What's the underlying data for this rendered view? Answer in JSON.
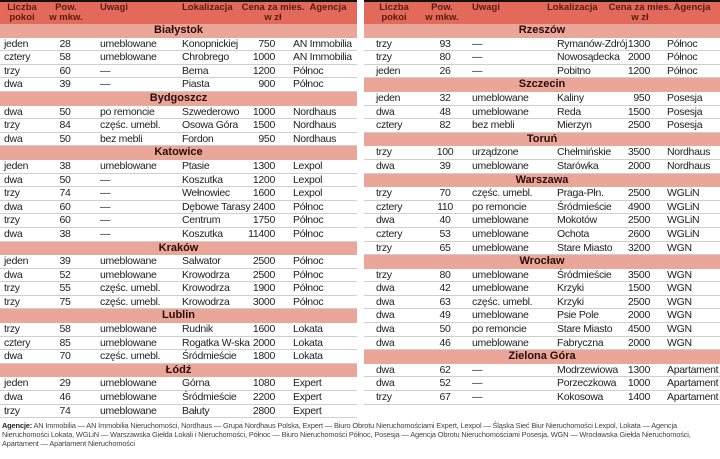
{
  "headers": [
    "Liczba\npokoi",
    "Pow.\nw mkw.",
    "Uwagi",
    "Lokalizacja",
    "Cena za mies.\nw zł",
    "Agencja"
  ],
  "colors": {
    "header_bg": "#e3695b",
    "city_bg": "#eba69a",
    "header_text": "#5a1a12"
  },
  "left_table": [
    {
      "city": "Białystok",
      "rows": [
        [
          "jeden",
          "28",
          "umeblowane",
          "Konopnickiej",
          "750",
          "AN Immobilia"
        ],
        [
          "cztery",
          "58",
          "umeblowane",
          "Chrobrego",
          "1000",
          "AN Immobilia"
        ],
        [
          "trzy",
          "60",
          "—",
          "Bema",
          "1200",
          "Północ"
        ],
        [
          "dwa",
          "39",
          "—",
          "Piasta",
          "900",
          "Północ"
        ]
      ]
    },
    {
      "city": "Bydgoszcz",
      "rows": [
        [
          "dwa",
          "50",
          "po remoncie",
          "Szwederowo",
          "1000",
          "Nordhaus"
        ],
        [
          "trzy",
          "84",
          "częśc. umebl.",
          "Osowa Góra",
          "1500",
          "Nordhaus"
        ],
        [
          "dwa",
          "50",
          "bez mebli",
          "Fordon",
          "950",
          "Nordhaus"
        ]
      ]
    },
    {
      "city": "Katowice",
      "rows": [
        [
          "jeden",
          "38",
          "umeblowane",
          "Ptasie",
          "1300",
          "Lexpol"
        ],
        [
          "dwa",
          "50",
          "—",
          "Koszutka",
          "1200",
          "Lexpol"
        ],
        [
          "trzy",
          "74",
          "—",
          "Wełnowiec",
          "1600",
          "Lexpol"
        ],
        [
          "dwa",
          "60",
          "—",
          "Dębowe Tarasy",
          "2400",
          "Północ"
        ],
        [
          "trzy",
          "60",
          "—",
          "Centrum",
          "1750",
          "Północ"
        ],
        [
          "dwa",
          "38",
          "—",
          "Koszutka",
          "11400",
          "Północ"
        ]
      ]
    },
    {
      "city": "Kraków",
      "rows": [
        [
          "jeden",
          "39",
          "umeblowane",
          "Salwator",
          "2500",
          "Północ"
        ],
        [
          "dwa",
          "52",
          "umeblowane",
          "Krowodrza",
          "2500",
          "Północ"
        ],
        [
          "trzy",
          "55",
          "częśc. umebl.",
          "Krowodrza",
          "1900",
          "Północ"
        ],
        [
          "trzy",
          "75",
          "częśc. umebl.",
          "Krowodrza",
          "3000",
          "Północ"
        ]
      ]
    },
    {
      "city": "Lublin",
      "rows": [
        [
          "trzy",
          "58",
          "umeblowane",
          "Rudnik",
          "1600",
          "Lokata"
        ],
        [
          "cztery",
          "85",
          "umeblowane",
          "Rogatka W-ska",
          "2000",
          "Lokata"
        ],
        [
          "dwa",
          "70",
          "częśc. umebl.",
          "Śródmieście",
          "1800",
          "Lokata"
        ]
      ]
    },
    {
      "city": "Łódź",
      "rows": [
        [
          "jeden",
          "29",
          "umeblowane",
          "Górna",
          "1080",
          "Expert"
        ],
        [
          "dwa",
          "46",
          "umeblowane",
          "Śródmieście",
          "2200",
          "Expert"
        ],
        [
          "trzy",
          "74",
          "umeblowane",
          "Bałuty",
          "2800",
          "Expert"
        ]
      ]
    }
  ],
  "right_table": [
    {
      "city": "Rzeszów",
      "rows": [
        [
          "trzy",
          "93",
          "—",
          "Rymanów-Zdrój",
          "1300",
          "Północ"
        ],
        [
          "trzy",
          "80",
          "—",
          "Nowosądecka",
          "2000",
          "Północ"
        ],
        [
          "jeden",
          "26",
          "—",
          "Pobitno",
          "1200",
          "Północ"
        ]
      ]
    },
    {
      "city": "Szczecin",
      "rows": [
        [
          "jeden",
          "32",
          "umeblowane",
          "Kaliny",
          "950",
          "Posesja"
        ],
        [
          "dwa",
          "48",
          "umeblowane",
          "Reda",
          "1500",
          "Posesja"
        ],
        [
          "cztery",
          "82",
          "bez mebli",
          "Mierzyn",
          "2500",
          "Posesja"
        ]
      ]
    },
    {
      "city": "Toruń",
      "rows": [
        [
          "trzy",
          "100",
          "urządzone",
          "Chełmińskie",
          "3500",
          "Nordhaus"
        ],
        [
          "dwa",
          "39",
          "umeblowane",
          "Starówka",
          "2000",
          "Nordhaus"
        ]
      ]
    },
    {
      "city": "Warszawa",
      "rows": [
        [
          "trzy",
          "70",
          "częśc. umebl.",
          "Praga-Płn.",
          "2500",
          "WGLiN"
        ],
        [
          "cztery",
          "110",
          "po remoncie",
          "Śródmieście",
          "4900",
          "WGLiN"
        ],
        [
          "dwa",
          "40",
          "umeblowane",
          "Mokotów",
          "2500",
          "WGLiN"
        ],
        [
          "cztery",
          "53",
          "umeblowane",
          "Ochota",
          "2600",
          "WGLiN"
        ],
        [
          "trzy",
          "65",
          "umeblowane",
          "Stare Miasto",
          "3200",
          "WGN"
        ]
      ]
    },
    {
      "city": "Wrocław",
      "rows": [
        [
          "trzy",
          "80",
          "umeblowane",
          "Śródmieście",
          "3500",
          "WGN"
        ],
        [
          "dwa",
          "42",
          "umeblowane",
          "Krzyki",
          "1500",
          "WGN"
        ],
        [
          "dwa",
          "63",
          "częśc. umebl.",
          "Krzyki",
          "2500",
          "WGN"
        ],
        [
          "dwa",
          "49",
          "umeblowane",
          "Psie Pole",
          "2000",
          "WGN"
        ],
        [
          "dwa",
          "50",
          "po remoncie",
          "Stare Miasto",
          "4500",
          "WGN"
        ],
        [
          "dwa",
          "46",
          "umeblowane",
          "Fabryczna",
          "2000",
          "WGN"
        ]
      ]
    },
    {
      "city": "Zielona Góra",
      "rows": [
        [
          "dwa",
          "62",
          "—",
          "Modrzewiowa",
          "1300",
          "Apartament"
        ],
        [
          "dwa",
          "52",
          "—",
          "Porzeczkowa",
          "1000",
          "Apartament"
        ],
        [
          "trzy",
          "67",
          "—",
          "Kokosowa",
          "1400",
          "Apartament"
        ]
      ]
    }
  ],
  "footer": {
    "label": "Agencje:",
    "text": "AN Immobilia — AN Immobilia Nieruchomości, Nordhaus — Grupa Nordhaus Polska, Expert — Biuro Obrotu Nieruchomościami Expert, Lexpol — Śląska Sieć Biur Nieruchomości Lexpol, Lokata — Agencja Nieruchomości Lokata, WGLiN — Warszawska Giełda Lokali i Nieruchomości, Północ — Biuro Nieruchomości Północ, Posesja — Agencja Obrotu Nieruchomościami Posesja, WGN — Wrocławska Giełda Nieruchomości, Apartament — Apartament Nieruchomości"
  }
}
